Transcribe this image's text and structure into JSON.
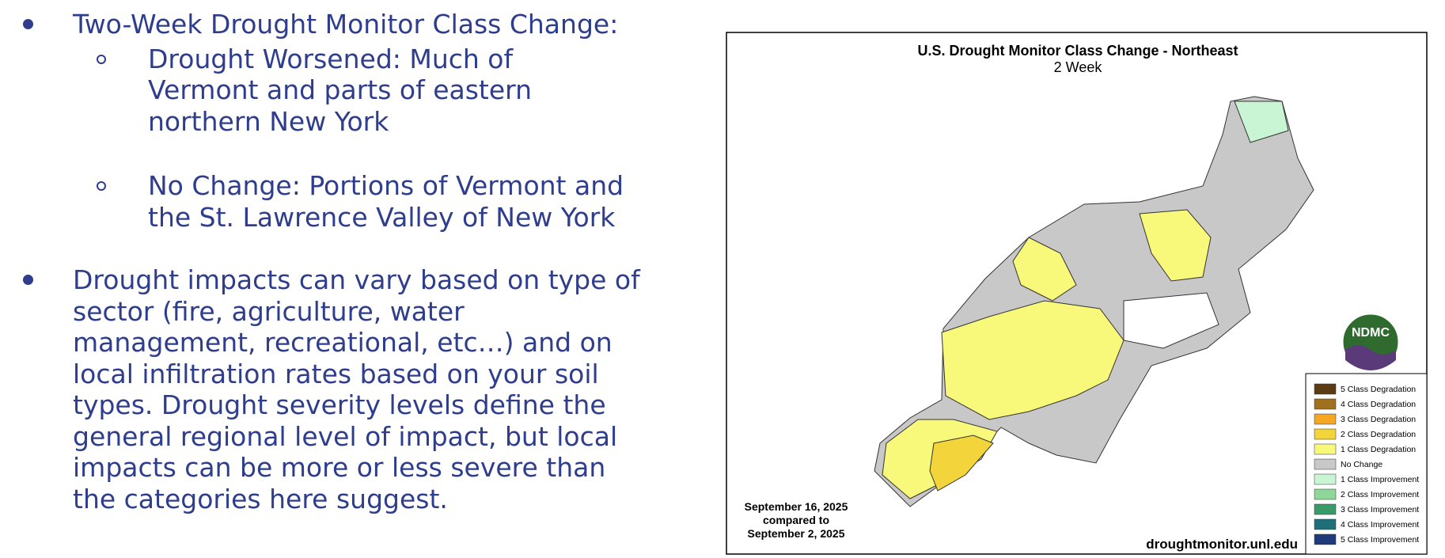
{
  "slide": {
    "bullets": [
      {
        "lines": [
          "Two-Week Drought Monitor Class Change:"
        ],
        "sub": [
          {
            "lines": [
              "Drought Worsened: Much of",
              "Vermont and parts of eastern",
              "northern New York"
            ]
          },
          {
            "lines": [
              "No Change: Portions of Vermont and",
              "the St. Lawrence Valley of New York"
            ]
          }
        ]
      },
      {
        "lines": [
          "Drought impacts can vary based on type of",
          "sector (fire, agriculture, water",
          "management, recreational, etc…) and on",
          "local infiltration rates based on your soil",
          "types. Drought severity levels define the",
          "general regional level of impact, but local",
          "impacts can be more or less severe than",
          "the categories here suggest."
        ],
        "sub": []
      }
    ],
    "map": {
      "title": "U.S. Drought Monitor Class Change - Northeast",
      "subtitle": "2 Week",
      "dates": [
        "September 16, 2025",
        "compared to",
        "September 2, 2025"
      ],
      "url": "droughtmonitor.unl.edu",
      "logo": "NDMC",
      "legend": [
        {
          "label": "5 Class Degradation",
          "color": "#5c3a12"
        },
        {
          "label": "4 Class Degradation",
          "color": "#a0701e"
        },
        {
          "label": "3 Class Degradation",
          "color": "#f5a623"
        },
        {
          "label": "2 Class Degradation",
          "color": "#f3d43a"
        },
        {
          "label": "1 Class Degradation",
          "color": "#f8f87a"
        },
        {
          "label": "No Change",
          "color": "#c8c8c8"
        },
        {
          "label": "1 Class Improvement",
          "color": "#c9f5d4"
        },
        {
          "label": "2 Class Improvement",
          "color": "#8fd699"
        },
        {
          "label": "3 Class Improvement",
          "color": "#3a9b6a"
        },
        {
          "label": "4 Class Improvement",
          "color": "#1f6f7a"
        },
        {
          "label": "5 Class Improvement",
          "color": "#1f3a78"
        }
      ]
    }
  }
}
